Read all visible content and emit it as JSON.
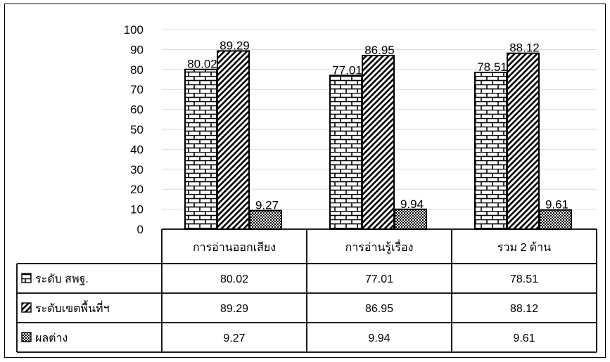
{
  "chart_data": {
    "type": "bar",
    "categories": [
      "การอ่านออกเสียง",
      "การอ่านรู้เรื่อง",
      "รวม 2 ด้าน"
    ],
    "series": [
      {
        "name": "ระดับ สพฐ.",
        "values": [
          80.02,
          77.01,
          78.51
        ],
        "pattern": "brick"
      },
      {
        "name": "ระดับเขตพื้นที่ฯ",
        "values": [
          89.29,
          86.95,
          88.12
        ],
        "pattern": "diagonal"
      },
      {
        "name": "ผลต่าง",
        "values": [
          9.27,
          9.94,
          9.61
        ],
        "pattern": "checker"
      }
    ],
    "data_labels": [
      [
        "80.02",
        "77.01",
        "78.51"
      ],
      [
        "89.29",
        "86.95",
        "88.12"
      ],
      [
        "9.27",
        "9.94",
        "9.61"
      ]
    ],
    "table_values": [
      [
        "80.02",
        "77.01",
        "78.51"
      ],
      [
        "89.29",
        "86.95",
        "88.12"
      ],
      [
        "9.27",
        "9.94",
        "9.61"
      ]
    ],
    "yticks": [
      "0",
      "10",
      "20",
      "30",
      "40",
      "50",
      "60",
      "70",
      "80",
      "90",
      "100"
    ],
    "ylim": [
      0,
      100
    ],
    "grid": true,
    "legend": "data-table"
  }
}
